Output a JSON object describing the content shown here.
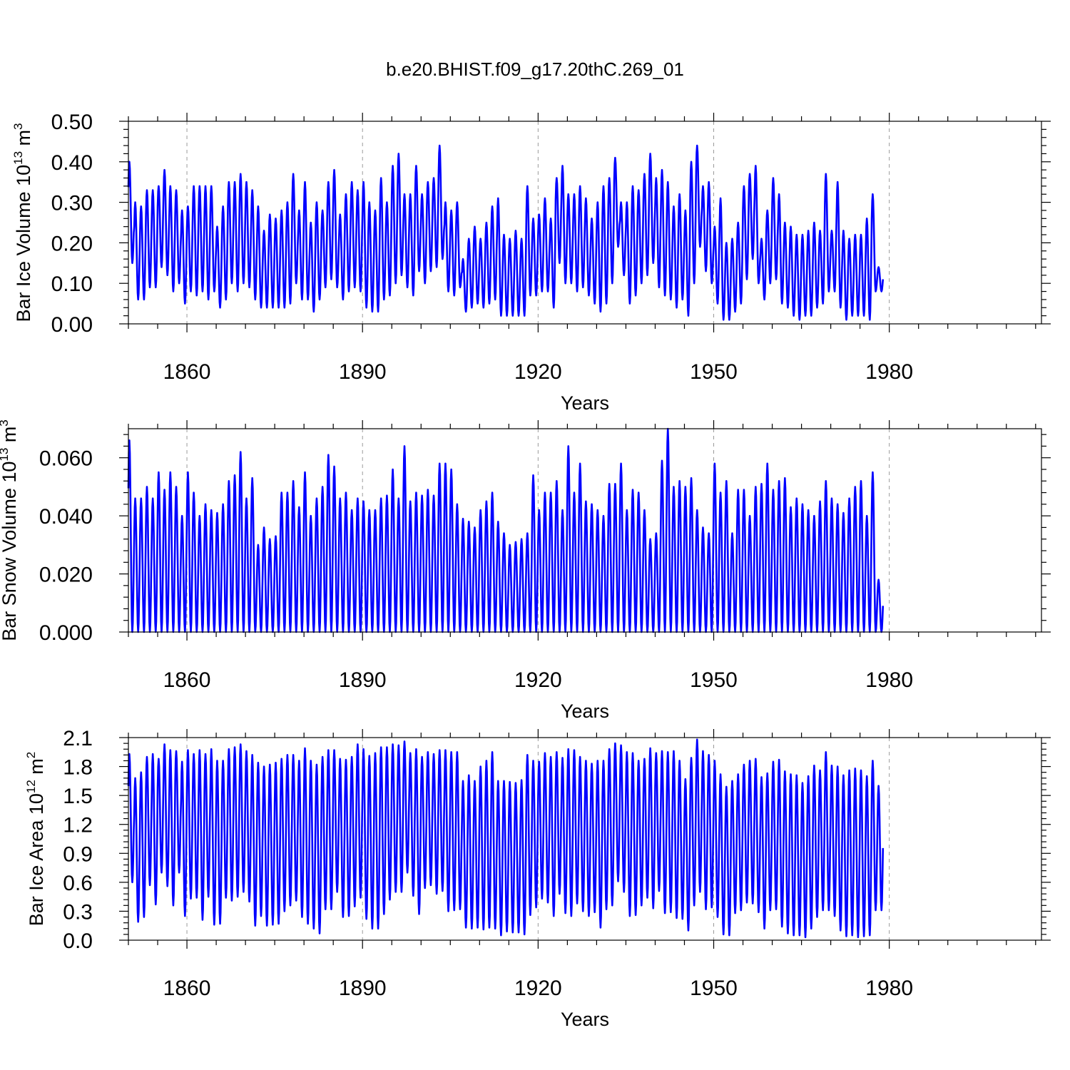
{
  "figure": {
    "title": "b.e20.BHIST.f09_g17.20thC.269_01"
  },
  "style": {
    "line_color": "#0000ff",
    "axis_color": "#000000",
    "grid_color": "#9a9a9a"
  },
  "chart_data": [
    {
      "type": "line",
      "title": "",
      "xlabel": "Years",
      "ylabel_main": "Bar Ice Volume 10",
      "ylabel_exp": "13",
      "ylabel_unit": " m",
      "ylabel_unit_exp": "3",
      "xlim": [
        1850,
        2006
      ],
      "ylim": [
        0.0,
        0.5
      ],
      "x_ticks": [
        1860,
        1890,
        1920,
        1950,
        1980
      ],
      "x_tick_labels": [
        "1860",
        "1890",
        "1920",
        "1950",
        "1980"
      ],
      "y_ticks": [
        0.0,
        0.1,
        0.2,
        0.3,
        0.4,
        0.5
      ],
      "y_tick_labels": [
        "0.00",
        "0.10",
        "0.20",
        "0.30",
        "0.40",
        "0.50"
      ],
      "grid": "vertical dashed at labeled years",
      "series": [
        {
          "start_year": 1850,
          "annual_max": [
            0.4,
            0.3,
            0.29,
            0.33,
            0.33,
            0.34,
            0.38,
            0.34,
            0.33,
            0.28,
            0.29,
            0.34,
            0.34,
            0.34,
            0.34,
            0.24,
            0.29,
            0.35,
            0.35,
            0.37,
            0.35,
            0.33,
            0.29,
            0.23,
            0.27,
            0.26,
            0.28,
            0.3,
            0.37,
            0.28,
            0.35,
            0.25,
            0.3,
            0.28,
            0.35,
            0.38,
            0.27,
            0.32,
            0.35,
            0.33,
            0.35,
            0.3,
            0.28,
            0.36,
            0.3,
            0.39,
            0.42,
            0.32,
            0.32,
            0.39,
            0.32,
            0.35,
            0.36,
            0.44,
            0.3,
            0.28,
            0.3,
            0.16,
            0.21,
            0.24,
            0.21,
            0.25,
            0.29,
            0.31,
            0.22,
            0.21,
            0.23,
            0.21,
            0.34,
            0.26,
            0.27,
            0.31,
            0.26,
            0.36,
            0.39,
            0.32,
            0.32,
            0.34,
            0.31,
            0.26,
            0.3,
            0.34,
            0.36,
            0.41,
            0.3,
            0.3,
            0.34,
            0.33,
            0.37,
            0.42,
            0.36,
            0.38,
            0.35,
            0.29,
            0.32,
            0.28,
            0.4,
            0.44,
            0.34,
            0.35,
            0.24,
            0.31,
            0.2,
            0.21,
            0.25,
            0.34,
            0.37,
            0.39,
            0.21,
            0.28,
            0.36,
            0.32,
            0.25,
            0.24,
            0.22,
            0.22,
            0.23,
            0.25,
            0.23,
            0.37,
            0.23,
            0.35,
            0.23,
            0.21,
            0.22,
            0.22,
            0.26,
            0.32,
            0.14
          ],
          "annual_min": [
            0.15,
            0.06,
            0.06,
            0.09,
            0.09,
            0.14,
            0.12,
            0.08,
            0.1,
            0.05,
            0.08,
            0.07,
            0.08,
            0.06,
            0.08,
            0.04,
            0.06,
            0.1,
            0.08,
            0.1,
            0.09,
            0.06,
            0.04,
            0.04,
            0.04,
            0.04,
            0.04,
            0.05,
            0.1,
            0.06,
            0.06,
            0.03,
            0.06,
            0.09,
            0.11,
            0.09,
            0.06,
            0.08,
            0.09,
            0.08,
            0.04,
            0.03,
            0.03,
            0.06,
            0.07,
            0.1,
            0.12,
            0.09,
            0.07,
            0.13,
            0.1,
            0.13,
            0.14,
            0.16,
            0.08,
            0.07,
            0.09,
            0.03,
            0.04,
            0.05,
            0.04,
            0.05,
            0.06,
            0.02,
            0.02,
            0.02,
            0.02,
            0.02,
            0.07,
            0.07,
            0.08,
            0.08,
            0.04,
            0.15,
            0.1,
            0.1,
            0.08,
            0.09,
            0.07,
            0.05,
            0.03,
            0.05,
            0.1,
            0.19,
            0.12,
            0.05,
            0.07,
            0.1,
            0.12,
            0.15,
            0.09,
            0.07,
            0.06,
            0.04,
            0.06,
            0.02,
            0.1,
            0.19,
            0.13,
            0.1,
            0.05,
            0.01,
            0.01,
            0.03,
            0.05,
            0.11,
            0.16,
            0.1,
            0.06,
            0.1,
            0.11,
            0.05,
            0.04,
            0.02,
            0.01,
            0.02,
            0.02,
            0.04,
            0.05,
            0.08,
            0.08,
            0.04,
            0.01,
            0.02,
            0.02,
            0.02,
            0.01,
            0.08,
            0.08
          ]
        }
      ]
    },
    {
      "type": "line",
      "title": "",
      "xlabel": "Years",
      "ylabel_main": "Bar Snow Volume 10",
      "ylabel_exp": "13",
      "ylabel_unit": " m",
      "ylabel_unit_exp": "3",
      "xlim": [
        1850,
        2006
      ],
      "ylim": [
        0.0,
        0.07
      ],
      "x_ticks": [
        1860,
        1890,
        1920,
        1950,
        1980
      ],
      "x_tick_labels": [
        "1860",
        "1890",
        "1920",
        "1950",
        "1980"
      ],
      "y_ticks": [
        0.0,
        0.02,
        0.04,
        0.06
      ],
      "y_tick_labels": [
        "0.000",
        "0.020",
        "0.040",
        "0.060"
      ],
      "grid": "vertical dashed at labeled years",
      "series": [
        {
          "start_year": 1850,
          "annual_max": [
            0.066,
            0.046,
            0.046,
            0.05,
            0.046,
            0.055,
            0.049,
            0.055,
            0.05,
            0.04,
            0.055,
            0.048,
            0.04,
            0.044,
            0.042,
            0.041,
            0.044,
            0.052,
            0.054,
            0.062,
            0.046,
            0.053,
            0.03,
            0.036,
            0.032,
            0.033,
            0.048,
            0.048,
            0.052,
            0.043,
            0.055,
            0.04,
            0.046,
            0.05,
            0.061,
            0.057,
            0.046,
            0.048,
            0.042,
            0.046,
            0.045,
            0.042,
            0.042,
            0.046,
            0.047,
            0.056,
            0.046,
            0.064,
            0.045,
            0.048,
            0.047,
            0.049,
            0.047,
            0.058,
            0.058,
            0.056,
            0.044,
            0.039,
            0.038,
            0.036,
            0.042,
            0.045,
            0.048,
            0.038,
            0.034,
            0.03,
            0.031,
            0.032,
            0.034,
            0.054,
            0.042,
            0.048,
            0.048,
            0.052,
            0.042,
            0.064,
            0.048,
            0.058,
            0.045,
            0.044,
            0.042,
            0.04,
            0.051,
            0.051,
            0.058,
            0.042,
            0.049,
            0.048,
            0.042,
            0.032,
            0.034,
            0.059,
            0.07,
            0.05,
            0.052,
            0.05,
            0.053,
            0.042,
            0.036,
            0.034,
            0.058,
            0.048,
            0.052,
            0.034,
            0.049,
            0.049,
            0.04,
            0.05,
            0.051,
            0.058,
            0.049,
            0.052,
            0.053,
            0.043,
            0.046,
            0.044,
            0.042,
            0.04,
            0.045,
            0.052,
            0.046,
            0.044,
            0.041,
            0.046,
            0.05,
            0.052,
            0.04,
            0.055,
            0.018
          ],
          "annual_min": [
            0.0,
            0.0,
            0.0,
            0.0,
            0.0,
            0.0,
            0.0,
            0.0,
            0.0,
            0.0,
            0.0,
            0.0,
            0.0,
            0.0,
            0.0,
            0.0,
            0.0,
            0.0,
            0.0,
            0.0,
            0.0,
            0.0,
            0.0,
            0.0,
            0.0,
            0.0,
            0.0,
            0.0,
            0.0,
            0.0,
            0.0,
            0.0,
            0.0,
            0.0,
            0.0,
            0.0,
            0.0,
            0.0,
            0.0,
            0.0,
            0.0,
            0.0,
            0.0,
            0.0,
            0.0,
            0.0,
            0.0,
            0.0,
            0.0,
            0.0,
            0.0,
            0.0,
            0.0,
            0.0,
            0.0,
            0.0,
            0.0,
            0.0,
            0.0,
            0.0,
            0.0,
            0.0,
            0.0,
            0.0,
            0.0,
            0.0,
            0.0,
            0.0,
            0.0,
            0.0,
            0.0,
            0.0,
            0.0,
            0.0,
            0.0,
            0.0,
            0.0,
            0.0,
            0.0,
            0.0,
            0.0,
            0.0,
            0.0,
            0.0,
            0.0,
            0.0,
            0.0,
            0.0,
            0.0,
            0.0,
            0.0,
            0.0,
            0.0,
            0.0,
            0.0,
            0.0,
            0.0,
            0.0,
            0.0,
            0.0,
            0.0,
            0.0,
            0.0,
            0.0,
            0.0,
            0.0,
            0.0,
            0.0,
            0.0,
            0.0,
            0.0,
            0.0,
            0.0,
            0.0,
            0.0,
            0.0,
            0.0,
            0.0,
            0.0,
            0.0,
            0.0,
            0.0,
            0.0,
            0.0,
            0.0,
            0.0,
            0.0,
            0.0,
            0.0
          ]
        }
      ]
    },
    {
      "type": "line",
      "title": "",
      "xlabel": "Years",
      "ylabel_main": "Bar Ice Area 10",
      "ylabel_exp": "12",
      "ylabel_unit": " m",
      "ylabel_unit_exp": "2",
      "xlim": [
        1850,
        2006
      ],
      "ylim": [
        0.0,
        2.1
      ],
      "x_ticks": [
        1860,
        1890,
        1920,
        1950,
        1980
      ],
      "x_tick_labels": [
        "1860",
        "1890",
        "1920",
        "1950",
        "1980"
      ],
      "y_ticks": [
        0.0,
        0.3,
        0.6,
        0.9,
        1.2,
        1.5,
        1.8,
        2.1
      ],
      "y_tick_labels": [
        "0.0",
        "0.3",
        "0.6",
        "0.9",
        "1.2",
        "1.5",
        "1.8",
        "2.1"
      ],
      "grid": "vertical dashed at labeled years",
      "series": [
        {
          "start_year": 1850,
          "annual_max": [
            1.93,
            1.68,
            1.74,
            1.9,
            1.93,
            1.88,
            2.03,
            1.97,
            1.96,
            1.85,
            1.97,
            1.93,
            1.97,
            1.93,
            1.98,
            1.86,
            1.86,
            1.98,
            2.0,
            2.03,
            1.96,
            1.92,
            1.84,
            1.8,
            1.82,
            1.84,
            1.88,
            1.92,
            1.92,
            1.86,
            1.99,
            1.86,
            1.82,
            1.9,
            1.97,
            1.97,
            1.88,
            1.87,
            1.9,
            2.03,
            1.98,
            1.91,
            1.94,
            2.0,
            2.0,
            2.03,
            2.02,
            2.06,
            1.94,
            1.98,
            1.9,
            1.95,
            1.93,
            1.97,
            1.97,
            1.95,
            1.95,
            1.65,
            1.71,
            1.65,
            1.8,
            1.86,
            1.95,
            1.65,
            1.65,
            1.64,
            1.63,
            1.66,
            1.92,
            1.86,
            1.85,
            1.94,
            1.9,
            1.95,
            1.89,
            1.98,
            1.97,
            1.9,
            1.86,
            1.83,
            1.86,
            1.86,
            1.98,
            2.04,
            2.02,
            1.95,
            1.94,
            1.86,
            1.88,
            1.99,
            1.94,
            1.96,
            1.95,
            1.96,
            1.86,
            1.67,
            1.89,
            2.08,
            1.96,
            1.92,
            1.86,
            1.72,
            1.59,
            1.65,
            1.72,
            1.82,
            1.86,
            1.88,
            1.69,
            1.73,
            1.85,
            1.87,
            1.75,
            1.72,
            1.71,
            1.63,
            1.7,
            1.81,
            1.76,
            1.95,
            1.81,
            1.8,
            1.71,
            1.76,
            1.78,
            1.76,
            1.7,
            1.86,
            1.6
          ],
          "annual_min": [
            0.6,
            0.19,
            0.24,
            0.57,
            0.37,
            0.7,
            0.56,
            0.36,
            0.7,
            0.25,
            0.43,
            0.44,
            0.21,
            0.45,
            0.16,
            0.17,
            0.44,
            0.41,
            0.45,
            0.5,
            0.4,
            0.15,
            0.25,
            0.15,
            0.16,
            0.17,
            0.3,
            0.36,
            0.41,
            0.24,
            0.17,
            0.12,
            0.07,
            0.32,
            0.32,
            0.5,
            0.24,
            0.25,
            0.35,
            0.44,
            0.22,
            0.12,
            0.12,
            0.27,
            0.42,
            0.5,
            0.5,
            0.7,
            0.46,
            0.27,
            0.54,
            0.57,
            0.48,
            0.51,
            0.3,
            0.31,
            0.32,
            0.13,
            0.12,
            0.13,
            0.11,
            0.13,
            0.12,
            0.05,
            0.09,
            0.08,
            0.08,
            0.06,
            0.26,
            0.34,
            0.43,
            0.39,
            0.25,
            0.48,
            0.28,
            0.25,
            0.38,
            0.3,
            0.25,
            0.29,
            0.13,
            0.32,
            0.36,
            0.61,
            0.5,
            0.25,
            0.26,
            0.36,
            0.44,
            0.33,
            0.51,
            0.28,
            0.29,
            0.23,
            0.22,
            0.1,
            0.36,
            0.5,
            0.32,
            0.34,
            0.24,
            0.06,
            0.05,
            0.28,
            0.31,
            0.39,
            0.38,
            0.29,
            0.12,
            0.31,
            0.32,
            0.14,
            0.07,
            0.05,
            0.05,
            0.03,
            0.12,
            0.24,
            0.31,
            0.31,
            0.25,
            0.1,
            0.04,
            0.05,
            0.03,
            0.04,
            0.05,
            0.31,
            0.31
          ]
        }
      ]
    }
  ]
}
